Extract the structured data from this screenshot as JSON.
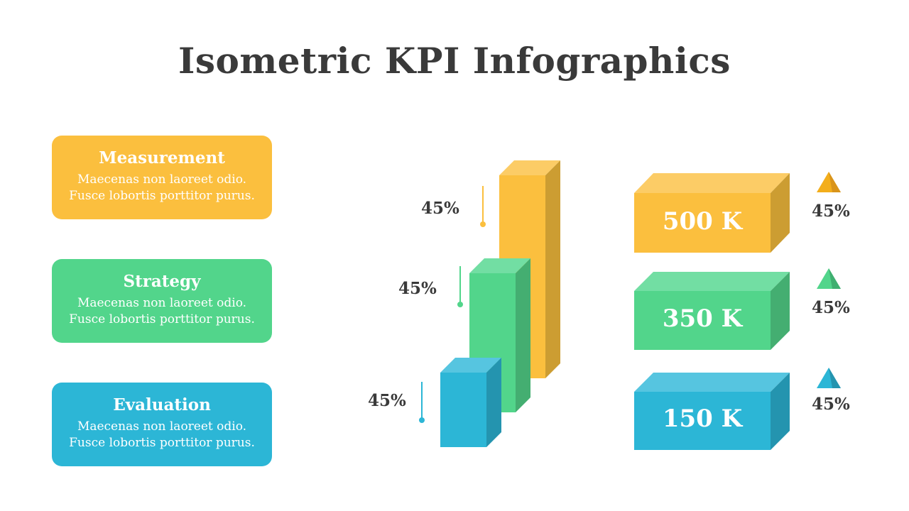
{
  "title": "Isometric KPI Infographics",
  "colors": {
    "yellow": "#FBBF3E",
    "green": "#52D58B",
    "blue": "#2CB6D6",
    "text": "#3A3A3A"
  },
  "cards": [
    {
      "title": "Measurement",
      "lines": [
        "Maecenas non laoreet odio.",
        "Fusce lobortis porttitor purus."
      ],
      "color": "#FBBF3E"
    },
    {
      "title": "Strategy",
      "lines": [
        "Maecenas non laoreet odio.",
        "Fusce lobortis porttitor purus."
      ],
      "color": "#52D58B"
    },
    {
      "title": "Evaluation",
      "lines": [
        "Maecenas non laoreet odio.",
        "Fusce lobortis porttitor purus."
      ],
      "color": "#2CB6D6"
    }
  ],
  "bars": [
    {
      "label": "45%",
      "color": "#FBBF3E"
    },
    {
      "label": "45%",
      "color": "#52D58B"
    },
    {
      "label": "45%",
      "color": "#2CB6D6"
    }
  ],
  "kpis": [
    {
      "value": "500 K",
      "change": "45%",
      "color": "#FBBF3E",
      "trend_icon": "triangle-up-icon"
    },
    {
      "value": "350 K",
      "change": "45%",
      "color": "#52D58B",
      "trend_icon": "triangle-up-icon"
    },
    {
      "value": "150 K",
      "change": "45%",
      "color": "#2CB6D6",
      "trend_icon": "triangle-up-icon"
    }
  ]
}
